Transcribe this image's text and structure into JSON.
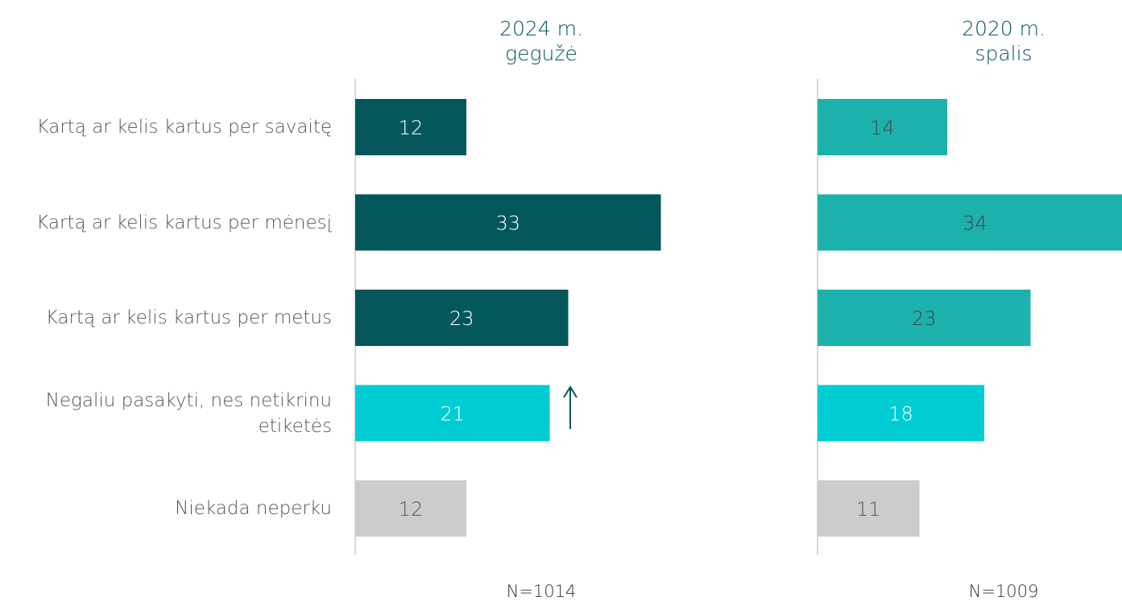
{
  "chart_data": {
    "type": "bar",
    "orientation": "horizontal",
    "categories": [
      "Kartą ar kelis kartus per savaitę",
      "Kartą ar kelis kartus per mėnesį",
      "Kartą ar kelis kartus per metus",
      "Negaliu pasakyti, nes netikrinu etiketės",
      "Niekada neperku"
    ],
    "series": [
      {
        "title": "2024 m. gegužė",
        "note": "N=1014",
        "values": [
          12,
          33,
          23,
          21,
          12
        ],
        "colors": [
          "#03575b",
          "#03575b",
          "#03575b",
          "#00cdd3",
          "#cccccc"
        ],
        "label_colors": [
          "#ffffff",
          "#ffffff",
          "#ffffff",
          "#ffffff",
          "#555555"
        ]
      },
      {
        "title": "2020 m. spalis",
        "note": "N=1009",
        "values": [
          14,
          34,
          23,
          18,
          11
        ],
        "colors": [
          "#1cb1ad",
          "#1cb1ad",
          "#1cb1ad",
          "#00cdd3",
          "#cccccc"
        ],
        "label_colors": [
          "#444444",
          "#444444",
          "#444444",
          "#ffffff",
          "#555555"
        ]
      }
    ]
  }
}
